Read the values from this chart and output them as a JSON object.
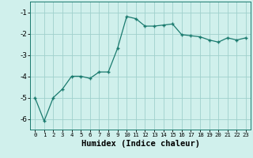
{
  "x": [
    0,
    1,
    2,
    3,
    4,
    5,
    6,
    7,
    8,
    9,
    10,
    11,
    12,
    13,
    14,
    15,
    16,
    17,
    18,
    19,
    20,
    21,
    22,
    23
  ],
  "y": [
    -5.0,
    -6.1,
    -5.0,
    -4.6,
    -4.0,
    -4.0,
    -4.1,
    -3.8,
    -3.8,
    -2.7,
    -1.2,
    -1.3,
    -1.65,
    -1.65,
    -1.6,
    -1.55,
    -2.05,
    -2.1,
    -2.15,
    -2.3,
    -2.4,
    -2.2,
    -2.3,
    -2.2
  ],
  "line_color": "#1a7a6e",
  "marker": "+",
  "markersize": 3,
  "linewidth": 0.9,
  "bg_color": "#d0f0ec",
  "grid_color": "#a0d0cc",
  "xlabel": "Humidex (Indice chaleur)",
  "ylim": [
    -6.5,
    -0.5
  ],
  "xlim": [
    -0.5,
    23.5
  ],
  "yticks": [
    -6,
    -5,
    -4,
    -3,
    -2,
    -1
  ],
  "xticks": [
    0,
    1,
    2,
    3,
    4,
    5,
    6,
    7,
    8,
    9,
    10,
    11,
    12,
    13,
    14,
    15,
    16,
    17,
    18,
    19,
    20,
    21,
    22,
    23
  ],
  "xlabel_fontsize": 7.5,
  "tick_fontsize": 6.5
}
